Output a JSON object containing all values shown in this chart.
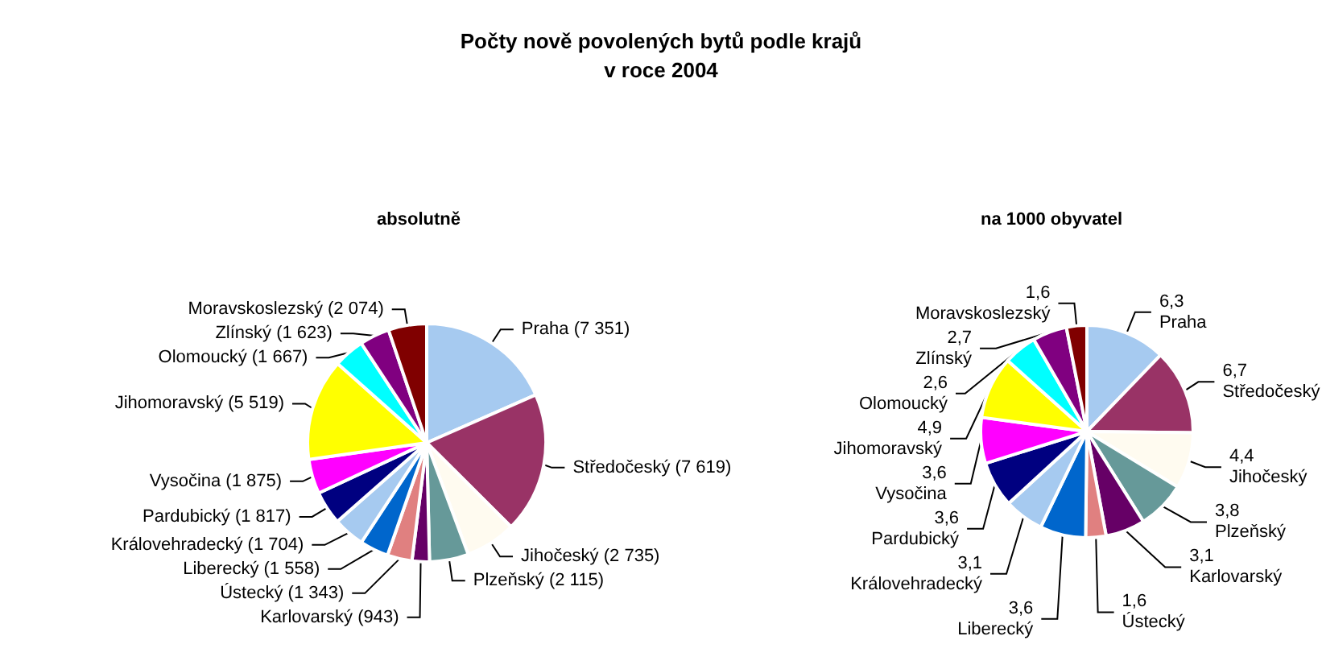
{
  "chart_data": [
    {
      "type": "pie",
      "title": "Počty nově povolených bytů podle krajů\nv roce 2004",
      "subtitle": "absolutně",
      "categories": [
        "Praha",
        "Středočeský",
        "Jihočeský",
        "Plzeňský",
        "Karlovarský",
        "Ústecký",
        "Liberecký",
        "Královehradecký",
        "Pardubický",
        "Vysočina",
        "Jihomoravský",
        "Olomoucký",
        "Zlínský",
        "Moravskoslezský"
      ],
      "values": [
        7351,
        7619,
        2735,
        2115,
        943,
        1343,
        1558,
        1704,
        1817,
        1875,
        5519,
        1667,
        1623,
        2074
      ],
      "value_labels": [
        "(7 351)",
        "(7 619)",
        "(2 735)",
        "(2 115)",
        "(943)",
        "(1 343)",
        "(1 558)",
        "(1 704)",
        "(1 817)",
        "(1 875)",
        "(5 519)",
        "(1 667)",
        "(1 623)",
        "(2 074)"
      ],
      "colors": [
        "#a6caf0",
        "#993366",
        "#fffbf0",
        "#669999",
        "#660066",
        "#e08080",
        "#0066cc",
        "#a6caf0",
        "#000080",
        "#ff00ff",
        "#ffff00",
        "#00ffff",
        "#800080",
        "#800000"
      ]
    },
    {
      "type": "pie",
      "subtitle": "na 1000 obyvatel",
      "categories": [
        "Praha",
        "Středočeský",
        "Jihočeský",
        "Plzeňský",
        "Karlovarský",
        "Ústecký",
        "Liberecký",
        "Královehradecký",
        "Pardubický",
        "Vysočina",
        "Jihomoravský",
        "Olomoucký",
        "Zlínský",
        "Moravskoslezský"
      ],
      "values": [
        6.3,
        6.7,
        4.4,
        3.8,
        3.1,
        1.6,
        3.6,
        3.1,
        3.6,
        3.6,
        4.9,
        2.6,
        2.7,
        1.6
      ],
      "value_labels": [
        "6,3",
        "6,7",
        "4,4",
        "3,8",
        "3,1",
        "1,6",
        "3,6",
        "3,1",
        "3,6",
        "3,6",
        "4,9",
        "2,6",
        "2,7",
        "1,6"
      ],
      "colors": [
        "#a6caf0",
        "#993366",
        "#fffbf0",
        "#669999",
        "#660066",
        "#e08080",
        "#0066cc",
        "#a6caf0",
        "#000080",
        "#ff00ff",
        "#ffff00",
        "#00ffff",
        "#800080",
        "#800000"
      ]
    }
  ]
}
